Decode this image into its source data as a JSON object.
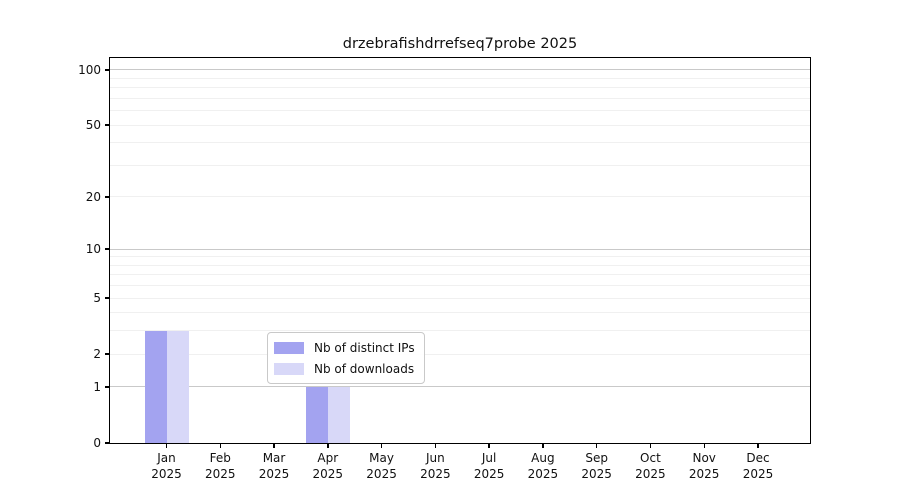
{
  "chart_data": {
    "type": "bar",
    "title": "drzebrafishdrrefseq7probe 2025",
    "xlabel": "",
    "ylabel": "",
    "yscale": "log1p",
    "ylim": [
      0,
      116
    ],
    "grid": true,
    "legend_position": "lower center",
    "categories": [
      {
        "month": "Jan",
        "year": "2025"
      },
      {
        "month": "Feb",
        "year": "2025"
      },
      {
        "month": "Mar",
        "year": "2025"
      },
      {
        "month": "Apr",
        "year": "2025"
      },
      {
        "month": "May",
        "year": "2025"
      },
      {
        "month": "Jun",
        "year": "2025"
      },
      {
        "month": "Jul",
        "year": "2025"
      },
      {
        "month": "Aug",
        "year": "2025"
      },
      {
        "month": "Sep",
        "year": "2025"
      },
      {
        "month": "Oct",
        "year": "2025"
      },
      {
        "month": "Nov",
        "year": "2025"
      },
      {
        "month": "Dec",
        "year": "2025"
      }
    ],
    "series": [
      {
        "name": "Nb of distinct IPs",
        "color": "#a3a3f0",
        "values": [
          3,
          0,
          0,
          1,
          0,
          0,
          0,
          0,
          0,
          0,
          0,
          0
        ]
      },
      {
        "name": "Nb of downloads",
        "color": "#d8d8f8",
        "values": [
          3,
          0,
          0,
          1,
          0,
          0,
          0,
          0,
          0,
          0,
          0,
          0
        ]
      }
    ],
    "yticks": [
      0,
      1,
      2,
      5,
      10,
      20,
      50,
      100
    ],
    "minor_gridlines": [
      2,
      3,
      4,
      5,
      6,
      7,
      8,
      9,
      20,
      30,
      40,
      50,
      60,
      70,
      80,
      90
    ],
    "major_gridlines": [
      1,
      10,
      100
    ],
    "colors": {
      "spine": "#000000",
      "major_grid": "#c9c9c9",
      "minor_grid": "#f0f0f0",
      "text": "#111111",
      "background": "#ffffff"
    }
  }
}
